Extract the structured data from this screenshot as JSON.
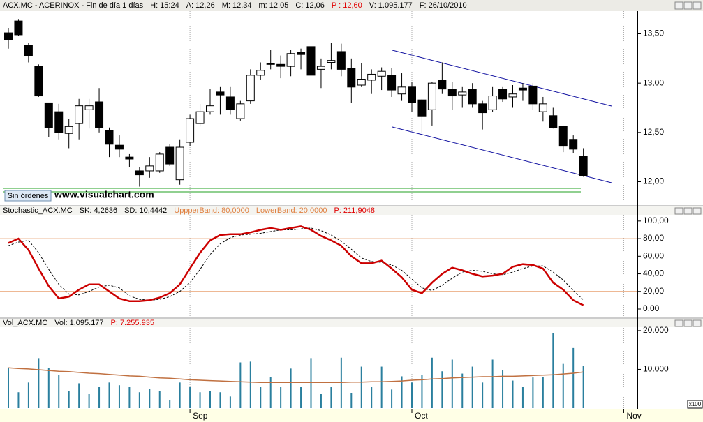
{
  "chart_data": [
    {
      "type": "candlestick",
      "title": "ACX.MC - ACERINOX - Fin de día 1 días",
      "info": [
        {
          "text": "H: 15:24"
        },
        {
          "text": "A: 12,26"
        },
        {
          "text": "M: 12,34"
        },
        {
          "text": "m: 12,05"
        },
        {
          "text": "C: 12,06"
        },
        {
          "text": "P : 12,60",
          "color": "#e00000"
        },
        {
          "text": "V: 1.095.177"
        },
        {
          "text": "F: 26/10/2010"
        }
      ],
      "button": "Sin órdenes",
      "watermark": "www.visualchart.com",
      "up_color": "#ffffff",
      "down_color": "#000000",
      "open": [
        13.51,
        13.63,
        13.38,
        13.17,
        12.8,
        12.71,
        12.49,
        12.59,
        12.73,
        12.81,
        12.52,
        12.37,
        12.25,
        12.11,
        12.11,
        12.11,
        12.35,
        12.02,
        12.4,
        12.59,
        12.71,
        12.91,
        12.86,
        12.64,
        12.82,
        13.08,
        13.2,
        13.19,
        13.17,
        13.31,
        13.37,
        13.14,
        13.21,
        13.32,
        13.15,
        12.98,
        13.03,
        13.07,
        13.08,
        12.89,
        12.96,
        12.83,
        12.73,
        13.03,
        12.94,
        12.88,
        12.94,
        12.79,
        12.73,
        12.94,
        12.86,
        12.95,
        12.97,
        12.71,
        12.67,
        12.56,
        12.43,
        12.26,
        null,
        null,
        null,
        null
      ],
      "high": [
        13.56,
        13.65,
        13.41,
        13.19,
        12.8,
        12.79,
        12.64,
        12.84,
        12.84,
        12.95,
        12.55,
        12.47,
        12.28,
        12.15,
        12.25,
        12.3,
        12.38,
        12.43,
        12.68,
        12.79,
        12.94,
        12.96,
        12.96,
        12.82,
        13.14,
        13.21,
        13.34,
        13.28,
        13.34,
        13.35,
        13.41,
        13.25,
        13.41,
        13.4,
        13.25,
        13.2,
        13.14,
        13.16,
        13.15,
        13.1,
        13.01,
        12.84,
        13.01,
        13.21,
        13.01,
        12.96,
        13.0,
        12.82,
        12.96,
        12.96,
        12.98,
        13.0,
        13.0,
        12.86,
        12.75,
        12.57,
        12.47,
        12.34,
        null,
        null,
        null,
        null
      ],
      "low": [
        13.35,
        13.48,
        13.21,
        12.86,
        12.45,
        12.43,
        12.34,
        12.43,
        12.54,
        12.5,
        12.25,
        12.25,
        12.15,
        11.95,
        12.04,
        12.09,
        12.16,
        11.97,
        12.36,
        12.56,
        12.68,
        12.68,
        12.68,
        12.62,
        12.79,
        13.03,
        13.14,
        13.05,
        13.07,
        13.14,
        13.05,
        12.95,
        13.14,
        13.07,
        12.8,
        12.96,
        12.89,
        12.93,
        12.86,
        12.82,
        12.71,
        12.49,
        12.57,
        12.89,
        12.73,
        12.75,
        12.75,
        12.53,
        12.71,
        12.81,
        12.75,
        12.82,
        12.73,
        12.61,
        12.54,
        12.3,
        12.29,
        12.05,
        null,
        null,
        null,
        null
      ],
      "close": [
        13.44,
        13.49,
        13.28,
        12.87,
        12.55,
        12.5,
        12.56,
        12.77,
        12.77,
        12.55,
        12.38,
        12.33,
        12.23,
        12.07,
        12.16,
        12.28,
        12.18,
        12.35,
        12.64,
        12.71,
        12.77,
        12.88,
        12.73,
        12.79,
        13.08,
        13.13,
        13.19,
        13.17,
        13.3,
        13.29,
        13.08,
        13.17,
        13.23,
        13.14,
        12.96,
        13.04,
        13.09,
        13.12,
        12.93,
        12.96,
        12.8,
        12.66,
        13.0,
        12.94,
        12.87,
        12.91,
        12.79,
        12.7,
        12.87,
        12.84,
        12.89,
        12.93,
        12.79,
        12.79,
        12.55,
        12.36,
        12.33,
        12.06,
        null,
        null,
        null,
        null
      ],
      "ylim": [
        11.77,
        13.73
      ],
      "yticks": [
        {
          "value": 12,
          "label": "12,00"
        },
        {
          "value": 12.5,
          "label": "12,50"
        },
        {
          "value": 13,
          "label": "13,00"
        },
        {
          "value": 13.5,
          "label": "13,50"
        }
      ]
    },
    {
      "type": "line",
      "title": "Stochastic_ACX.MC",
      "info": [
        {
          "text": "SK: 4,2636"
        },
        {
          "text": "SD: 10,4442"
        },
        {
          "text": "UppperBand: 80,0000",
          "color": "#e08040"
        },
        {
          "text": "LowerBand: 20,0000",
          "color": "#e08040"
        },
        {
          "text": "P: 211,9048",
          "color": "#e00000"
        }
      ],
      "bands": [
        80,
        20
      ],
      "band_color": "#e8a070",
      "series": [
        {
          "name": "SK",
          "color": "#cc0000",
          "width": 2.5,
          "dash": false,
          "values": [
            75,
            80,
            67,
            46,
            26,
            12,
            14,
            22,
            28,
            28,
            20,
            12,
            9,
            9,
            10,
            13,
            18,
            28,
            46,
            64,
            78,
            84,
            85,
            85,
            87,
            90,
            92,
            90,
            92,
            94,
            90,
            83,
            78,
            72,
            60,
            52,
            52,
            55,
            46,
            36,
            22,
            18,
            30,
            40,
            47,
            44,
            40,
            37,
            38,
            40,
            48,
            51,
            50,
            46,
            30,
            22,
            10,
            4.2636,
            null,
            null,
            null,
            null
          ]
        },
        {
          "name": "SD",
          "color": "#000000",
          "width": 1,
          "dash": true,
          "values": [
            72,
            76,
            78,
            64,
            45,
            28,
            17,
            16,
            20,
            25,
            27,
            24,
            15,
            11,
            10,
            11,
            14,
            20,
            30,
            45,
            62,
            74,
            81,
            84,
            85,
            86,
            88,
            90,
            90,
            91,
            92,
            89,
            84,
            77,
            68,
            58,
            54,
            53,
            50,
            44,
            34,
            24,
            21,
            27,
            35,
            42,
            44,
            43,
            40,
            39,
            42,
            46,
            49,
            49,
            42,
            33,
            21,
            10.4442,
            null,
            null,
            null,
            null
          ]
        }
      ],
      "ylim": [
        -9.5,
        107
      ],
      "yticks": [
        {
          "value": 0,
          "label": "0,00"
        },
        {
          "value": 20,
          "label": "20,00"
        },
        {
          "value": 40,
          "label": "40,00"
        },
        {
          "value": 60,
          "label": "60,00"
        },
        {
          "value": 80,
          "label": "80,00"
        },
        {
          "value": 100,
          "label": "100,00"
        }
      ]
    },
    {
      "type": "bar",
      "title": "Vol_ACX.MC",
      "info": [
        {
          "text": "Vol: 1.095.177"
        },
        {
          "text": "P: 7.255.935",
          "color": "#e00000"
        }
      ],
      "unit": "x100",
      "categories": [
        null,
        null,
        null,
        null,
        null,
        null,
        null,
        null,
        null,
        null,
        null,
        null,
        null,
        null,
        null,
        null,
        null,
        null,
        "Sep",
        null,
        null,
        null,
        null,
        null,
        null,
        null,
        null,
        null,
        null,
        null,
        null,
        null,
        null,
        null,
        null,
        null,
        null,
        null,
        null,
        null,
        "Oct",
        null,
        null,
        null,
        null,
        null,
        null,
        null,
        null,
        null,
        null,
        null,
        null,
        null,
        null,
        null,
        null,
        null,
        null,
        null,
        null,
        "Nov"
      ],
      "series": [
        {
          "name": "Vol",
          "type": "bar",
          "color": "#2a7f9e",
          "values": [
            10400,
            4100,
            6600,
            12900,
            10400,
            8600,
            4500,
            6400,
            3600,
            5400,
            6600,
            5900,
            5400,
            4100,
            5000,
            4500,
            2000,
            6600,
            5400,
            4100,
            4500,
            4100,
            3000,
            11800,
            12000,
            5400,
            8000,
            5400,
            10200,
            5400,
            12900,
            3600,
            5400,
            13000,
            3900,
            10700,
            5400,
            10700,
            4800,
            8200,
            6600,
            8600,
            13000,
            9500,
            12500,
            8900,
            10700,
            6600,
            12500,
            9800,
            7100,
            5400,
            7900,
            8000,
            19300,
            11400,
            15500,
            10952,
            null,
            null,
            null,
            null
          ]
        },
        {
          "name": "MA",
          "type": "line",
          "color": "#c07040",
          "values": [
            10400,
            10200,
            10100,
            9900,
            9700,
            9500,
            9400,
            9200,
            9000,
            8900,
            8700,
            8500,
            8300,
            8200,
            8000,
            7800,
            7700,
            7500,
            7300,
            7200,
            7100,
            7000,
            6900,
            6800,
            6700,
            6600,
            6600,
            6600,
            6600,
            6600,
            6600,
            6600,
            6600,
            6600,
            6700,
            6700,
            6800,
            6800,
            6900,
            7000,
            7200,
            7300,
            7500,
            7600,
            7800,
            7900,
            8000,
            8100,
            8100,
            8200,
            8200,
            8300,
            8400,
            8500,
            8600,
            8800,
            9000,
            9300,
            null,
            null,
            null,
            null
          ]
        }
      ],
      "ylim": [
        0,
        20700
      ],
      "yticks": [
        {
          "value": 10000,
          "label": "10.000"
        },
        {
          "value": 20000,
          "label": "20.000"
        }
      ]
    }
  ]
}
